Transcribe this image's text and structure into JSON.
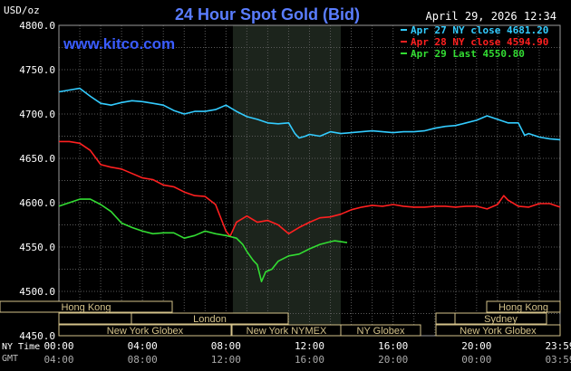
{
  "header": {
    "unit_label": "USD/oz",
    "title": "24 Hour Spot Gold (Bid)",
    "datetime": "April 29, 2026 12:34",
    "watermark": "www.kitco.com"
  },
  "legend": [
    {
      "text": "Apr 27 NY close 4681.20",
      "color": "#33ccff"
    },
    {
      "text": "Apr 28 NY close 4594.90",
      "color": "#ff2020"
    },
    {
      "text": "Apr 29 Last 4550.80",
      "color": "#33dd33"
    }
  ],
  "axis": {
    "y_ticks": [
      "4800.0",
      "4750.0",
      "4700.0",
      "4650.0",
      "4600.0",
      "4550.0",
      "4500.0",
      "4450.0"
    ],
    "row1_label": "NY Time",
    "row2_label": "GMT",
    "x_ticks_ny": [
      "00:00",
      "04:00",
      "08:00",
      "12:00",
      "16:00",
      "20:00",
      "23:59"
    ],
    "x_ticks_gmt": [
      "04:00",
      "08:00",
      "12:00",
      "16:00",
      "20:00",
      "00:00",
      "03:59"
    ]
  },
  "sessions": {
    "hong_kong_1": "Hong Kong",
    "london": "London",
    "ny_globex_1": "New York Globex",
    "ny_nymex": "New York NYMEX",
    "ny_globex_2": "NY Globex",
    "hong_kong_2": "Hong Kong",
    "sydney": "Sydney",
    "ny_globex_3": "New York Globex"
  },
  "chart_data": {
    "type": "line",
    "x_unit": "hours since 00:00 NY time",
    "ylim": [
      4450,
      4800
    ],
    "xlim": [
      0,
      24
    ],
    "grid": true,
    "series": [
      {
        "name": "Apr 27 NY close 4681.20",
        "color": "#33ccff",
        "points": [
          [
            0,
            4725
          ],
          [
            0.5,
            4727
          ],
          [
            1,
            4729
          ],
          [
            1.5,
            4720
          ],
          [
            2,
            4712
          ],
          [
            2.5,
            4710
          ],
          [
            3,
            4713
          ],
          [
            3.5,
            4715
          ],
          [
            4,
            4714
          ],
          [
            4.5,
            4712
          ],
          [
            5,
            4710
          ],
          [
            5.5,
            4704
          ],
          [
            6,
            4700
          ],
          [
            6.5,
            4703
          ],
          [
            7,
            4703
          ],
          [
            7.5,
            4705
          ],
          [
            8,
            4710
          ],
          [
            8.5,
            4703
          ],
          [
            9,
            4697
          ],
          [
            9.5,
            4694
          ],
          [
            10,
            4690
          ],
          [
            10.5,
            4689
          ],
          [
            11,
            4690
          ],
          [
            11.3,
            4678
          ],
          [
            11.5,
            4673
          ],
          [
            11.8,
            4675
          ],
          [
            12,
            4677
          ],
          [
            12.5,
            4675
          ],
          [
            13,
            4680
          ],
          [
            13.5,
            4678
          ],
          [
            14,
            4679
          ],
          [
            14.5,
            4680
          ],
          [
            15,
            4681
          ],
          [
            15.5,
            4680
          ],
          [
            16,
            4679
          ],
          [
            16.5,
            4680
          ],
          [
            17,
            4680
          ],
          [
            17.5,
            4681
          ],
          [
            18,
            4684
          ],
          [
            18.5,
            4686
          ],
          [
            19,
            4687
          ],
          [
            19.5,
            4690
          ],
          [
            20,
            4693
          ],
          [
            20.5,
            4698
          ],
          [
            21,
            4694
          ],
          [
            21.5,
            4690
          ],
          [
            22,
            4690
          ],
          [
            22.3,
            4676
          ],
          [
            22.5,
            4678
          ],
          [
            23,
            4674
          ],
          [
            23.5,
            4672
          ],
          [
            24,
            4671
          ]
        ]
      },
      {
        "name": "Apr 28 NY close 4594.90",
        "color": "#ff2020",
        "points": [
          [
            0,
            4669
          ],
          [
            0.5,
            4669
          ],
          [
            1,
            4667
          ],
          [
            1.5,
            4659
          ],
          [
            2,
            4643
          ],
          [
            2.5,
            4640
          ],
          [
            3,
            4638
          ],
          [
            3.5,
            4633
          ],
          [
            4,
            4628
          ],
          [
            4.5,
            4626
          ],
          [
            5,
            4620
          ],
          [
            5.5,
            4618
          ],
          [
            6,
            4612
          ],
          [
            6.5,
            4608
          ],
          [
            7,
            4607
          ],
          [
            7.5,
            4598
          ],
          [
            8,
            4568
          ],
          [
            8.2,
            4562
          ],
          [
            8.5,
            4578
          ],
          [
            9,
            4585
          ],
          [
            9.5,
            4578
          ],
          [
            10,
            4580
          ],
          [
            10.5,
            4575
          ],
          [
            11,
            4565
          ],
          [
            11.5,
            4572
          ],
          [
            12,
            4578
          ],
          [
            12.5,
            4583
          ],
          [
            13,
            4584
          ],
          [
            13.5,
            4587
          ],
          [
            14,
            4592
          ],
          [
            14.5,
            4595
          ],
          [
            15,
            4597
          ],
          [
            15.5,
            4596
          ],
          [
            16,
            4598
          ],
          [
            16.5,
            4596
          ],
          [
            17,
            4595
          ],
          [
            17.5,
            4595
          ],
          [
            18,
            4596
          ],
          [
            18.5,
            4596
          ],
          [
            19,
            4595
          ],
          [
            19.5,
            4596
          ],
          [
            20,
            4596
          ],
          [
            20.5,
            4593
          ],
          [
            21,
            4598
          ],
          [
            21.3,
            4608
          ],
          [
            21.5,
            4603
          ],
          [
            22,
            4596
          ],
          [
            22.5,
            4595
          ],
          [
            23,
            4599
          ],
          [
            23.5,
            4599
          ],
          [
            24,
            4595
          ]
        ]
      },
      {
        "name": "Apr 29 Last 4550.80",
        "color": "#33dd33",
        "points": [
          [
            0,
            4596
          ],
          [
            0.5,
            4600
          ],
          [
            1,
            4604
          ],
          [
            1.5,
            4604
          ],
          [
            2,
            4598
          ],
          [
            2.5,
            4590
          ],
          [
            3,
            4577
          ],
          [
            3.5,
            4572
          ],
          [
            4,
            4568
          ],
          [
            4.5,
            4565
          ],
          [
            5,
            4566
          ],
          [
            5.5,
            4566
          ],
          [
            6,
            4560
          ],
          [
            6.5,
            4563
          ],
          [
            7,
            4568
          ],
          [
            7.5,
            4565
          ],
          [
            8,
            4563
          ],
          [
            8.5,
            4560
          ],
          [
            8.8,
            4553
          ],
          [
            9,
            4545
          ],
          [
            9.3,
            4535
          ],
          [
            9.5,
            4530
          ],
          [
            9.7,
            4511
          ],
          [
            9.9,
            4522
          ],
          [
            10.2,
            4525
          ],
          [
            10.5,
            4534
          ],
          [
            11,
            4540
          ],
          [
            11.5,
            4542
          ],
          [
            12,
            4548
          ],
          [
            12.5,
            4553
          ],
          [
            13,
            4556
          ],
          [
            13.2,
            4557
          ],
          [
            13.5,
            4556
          ],
          [
            13.8,
            4555
          ]
        ]
      }
    ]
  }
}
